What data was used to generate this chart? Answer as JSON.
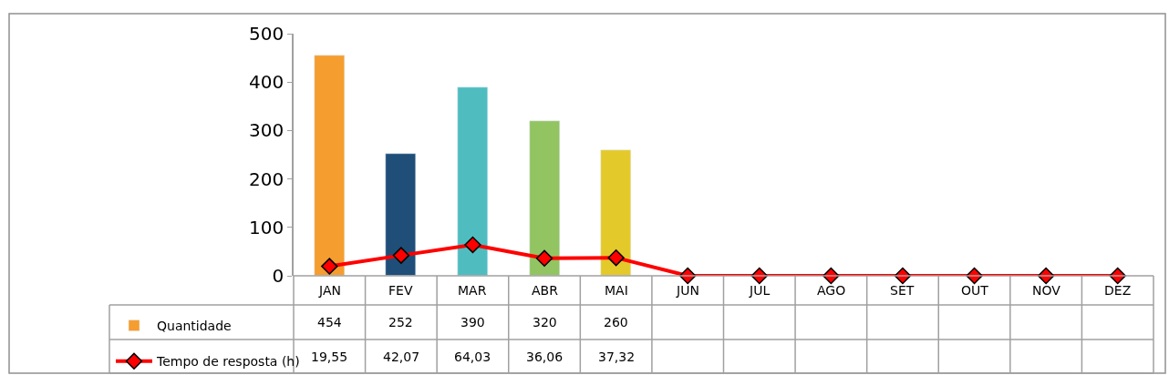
{
  "chart_data": {
    "type": "bar",
    "categories": [
      "JAN",
      "FEV",
      "MAR",
      "ABR",
      "MAI",
      "JUN",
      "JUL",
      "AGO",
      "SET",
      "OUT",
      "NOV",
      "DEZ"
    ],
    "series": [
      {
        "name": "Quantidade",
        "color": "#5b8fd6",
        "colors": [
          "#f59d2f",
          "#1f4e79",
          "#4fbdc0",
          "#92c462",
          "#e4c92b",
          "#5b8fd6",
          "#5b8fd6",
          "#5b8fd6",
          "#5b8fd6",
          "#5b8fd6",
          "#5b8fd6",
          "#5b8fd6"
        ],
        "values": [
          454,
          252,
          390,
          320,
          260,
          null,
          null,
          null,
          null,
          null,
          null,
          null
        ],
        "value_labels": [
          "454",
          "252",
          "390",
          "320",
          "260",
          null,
          null,
          null,
          null,
          null,
          null,
          null
        ]
      },
      {
        "name": "Tempo de resposta (h)",
        "type": "line",
        "color": "#ff0000",
        "marker": "diamond",
        "values": [
          19.55,
          42.07,
          64.03,
          36.06,
          37.32,
          0,
          0,
          0,
          0,
          0,
          0,
          0
        ],
        "value_labels": [
          "19,55",
          "42,07",
          "64,03",
          "36,06",
          "37,32",
          null,
          null,
          null,
          null,
          null,
          null,
          null
        ]
      }
    ],
    "ylim": [
      0,
      500
    ],
    "yticks": [
      0,
      100,
      200,
      300,
      400,
      500
    ],
    "grid": false,
    "legend": "bottom"
  }
}
